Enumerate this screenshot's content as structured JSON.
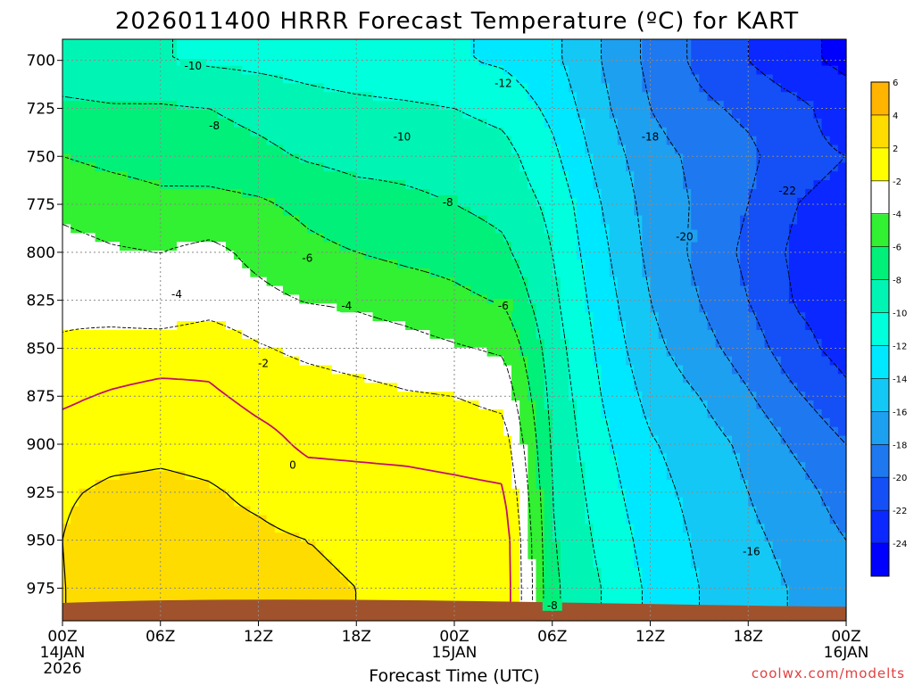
{
  "chart_data": {
    "type": "heatmap",
    "title": "2026011400 HRRR Forecast Temperature (ºC) for KART",
    "xlabel": "Forecast Time (UTC)",
    "ylabel": "",
    "x_ticks": [
      {
        "h": 0,
        "label": "00Z",
        "label2": "14JAN",
        "label3": "2026"
      },
      {
        "h": 6,
        "label": "06Z"
      },
      {
        "h": 12,
        "label": "12Z"
      },
      {
        "h": 18,
        "label": "18Z"
      },
      {
        "h": 24,
        "label": "00Z",
        "label2": "15JAN"
      },
      {
        "h": 30,
        "label": "06Z"
      },
      {
        "h": 36,
        "label": "12Z"
      },
      {
        "h": 42,
        "label": "18Z"
      },
      {
        "h": 48,
        "label": "00Z",
        "label2": "16JAN"
      }
    ],
    "xlim": [
      0,
      48
    ],
    "y_ticks": [
      700,
      725,
      750,
      775,
      800,
      825,
      850,
      875,
      900,
      925,
      950,
      975
    ],
    "ylim": [
      689,
      992
    ],
    "y_axis_inverted": true,
    "grid": true,
    "colorbar": {
      "levels": [
        -24,
        -22,
        -20,
        -18,
        -16,
        -14,
        -12,
        -10,
        -8,
        -6,
        -4,
        -2,
        2,
        4,
        6
      ],
      "labels": [
        "-24",
        "-22",
        "-20",
        "-18",
        "-16",
        "-14",
        "-12",
        "-10",
        "-8",
        "-6",
        "-4",
        "-2",
        "2",
        "4",
        "6"
      ],
      "colors": [
        "#0000ff",
        "#0a28ff",
        "#1450f5",
        "#1e78f0",
        "#1ea0f0",
        "#14c8f5",
        "#00e8ff",
        "#00ffdc",
        "#00f5b4",
        "#00f07a",
        "#32f032",
        "#ffffff",
        "#ffff00",
        "#ffdc00",
        "#ffb400"
      ]
    },
    "temperature_by_pressure": {
      "levels_hPa": [
        700,
        725,
        750,
        775,
        800,
        825,
        850,
        875,
        900,
        925,
        950,
        975
      ],
      "hours": [
        0,
        3,
        6,
        9,
        12,
        15,
        18,
        21,
        24,
        27,
        30,
        33,
        36,
        39,
        42,
        45,
        48
      ],
      "values": [
        [
          -9.5,
          -9.8,
          -9.9,
          -10.3,
          -10.5,
          -10.8,
          -11.2,
          -11.5,
          -11.8,
          -12.3,
          -13.5,
          -16.0,
          -18.5,
          -20.5,
          -22.0,
          -23.5,
          -24.5
        ],
        [
          -7.5,
          -7.8,
          -7.8,
          -8.0,
          -8.6,
          -9.2,
          -9.5,
          -9.7,
          -10.0,
          -10.6,
          -12.5,
          -15.5,
          -18.0,
          -19.5,
          -20.5,
          -21.5,
          -23.0
        ],
        [
          -6.0,
          -6.5,
          -6.8,
          -7.0,
          -7.5,
          -8.2,
          -8.6,
          -8.6,
          -8.8,
          -9.3,
          -11.5,
          -14.8,
          -17.2,
          -18.5,
          -19.5,
          -21.5,
          -22.0
        ],
        [
          -4.5,
          -5.0,
          -5.5,
          -5.4,
          -5.7,
          -6.5,
          -7.2,
          -7.6,
          -8.0,
          -8.6,
          -10.5,
          -14.0,
          -16.8,
          -18.3,
          -20.0,
          -22.0,
          -22.5
        ],
        [
          -3.3,
          -3.8,
          -4.0,
          -3.5,
          -4.5,
          -5.5,
          -6.0,
          -6.5,
          -6.8,
          -7.6,
          -10.0,
          -13.5,
          -16.5,
          -18.5,
          -20.5,
          -22.5,
          -23.0
        ],
        [
          -2.4,
          -3.0,
          -3.5,
          -2.9,
          -3.5,
          -4.1,
          -4.3,
          -4.8,
          -5.5,
          -6.2,
          -9.5,
          -13.0,
          -16.0,
          -18.0,
          -20.0,
          -22.2,
          -23.0
        ],
        [
          -1.8,
          -1.2,
          -1.0,
          -0.7,
          -1.8,
          -2.5,
          -3.0,
          -3.3,
          -3.8,
          -4.3,
          -9.0,
          -12.5,
          -15.4,
          -17.2,
          -19.0,
          -21.3,
          -22.8
        ],
        [
          -0.3,
          0.2,
          0.6,
          0.3,
          -0.5,
          -0.9,
          -1.3,
          -1.8,
          -2.0,
          -2.6,
          -8.6,
          -12.0,
          -14.6,
          -16.0,
          -17.8,
          -19.8,
          -21.5
        ],
        [
          0.8,
          1.2,
          1.5,
          1.3,
          0.6,
          -0.3,
          -0.4,
          -0.5,
          -0.7,
          -1.0,
          -8.3,
          -11.5,
          -13.8,
          -15.0,
          -16.5,
          -18.4,
          -20.0
        ],
        [
          1.7,
          2.4,
          2.5,
          2.2,
          1.6,
          0.8,
          0.7,
          0.6,
          0.4,
          0.2,
          -8.0,
          -11.0,
          -13.3,
          -14.6,
          -16.0,
          -17.2,
          -19.0
        ],
        [
          2.0,
          3.5,
          3.2,
          2.6,
          2.4,
          2.0,
          1.9,
          1.6,
          1.4,
          1.2,
          -7.8,
          -10.5,
          -12.8,
          -14.3,
          -15.6,
          -16.6,
          -18.0
        ],
        [
          1.9,
          3.4,
          3.3,
          2.8,
          2.6,
          2.1,
          2.0,
          1.8,
          1.6,
          1.3,
          -7.6,
          -10.0,
          -12.4,
          -14.0,
          -15.2,
          -16.2,
          -17.5
        ]
      ]
    },
    "contour_labels": [
      {
        "text": "-10",
        "h": 8.0,
        "p": 703
      },
      {
        "text": "-12",
        "h": 27.0,
        "p": 712
      },
      {
        "text": "-8",
        "h": 9.3,
        "p": 734
      },
      {
        "text": "-10",
        "h": 20.8,
        "p": 740
      },
      {
        "text": "-18",
        "h": 36.0,
        "p": 740
      },
      {
        "text": "-22",
        "h": 44.4,
        "p": 768
      },
      {
        "text": "-8",
        "h": 23.6,
        "p": 774
      },
      {
        "text": "-20",
        "h": 38.1,
        "p": 792
      },
      {
        "text": "-6",
        "h": 15.0,
        "p": 803
      },
      {
        "text": "-4",
        "h": 7.0,
        "p": 822
      },
      {
        "text": "-6",
        "h": 27.0,
        "p": 828
      },
      {
        "text": "-4",
        "h": 17.4,
        "p": 828
      },
      {
        "text": "-2",
        "h": 12.3,
        "p": 858
      },
      {
        "text": "0",
        "h": 14.1,
        "p": 911
      },
      {
        "text": "-16",
        "h": 42.2,
        "p": 956
      },
      {
        "text": "-8",
        "h": 30.0,
        "p": 984
      }
    ],
    "credit": "coolwx.com/modelts"
  }
}
